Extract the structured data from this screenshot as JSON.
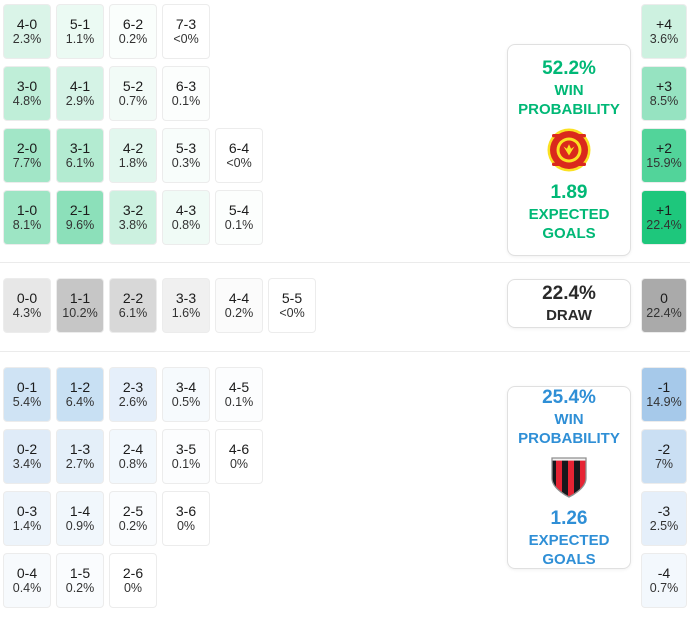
{
  "colors": {
    "home_accent": "#00b876",
    "draw_accent": "#2a2a2a",
    "away_accent": "#2f8fd6",
    "home_margin_strong": "#1ec77c",
    "away_margin_strong": "#a6c9ea",
    "draw_margin_strong": "#aaaaaa"
  },
  "icons": {
    "home_crest": "manchester-united-crest",
    "away_crest": "afc-bournemouth-crest"
  },
  "home_panel": {
    "win_prob": "52.2%",
    "win_line1": "WIN",
    "win_line2": "PROBABILITY",
    "xg": "1.89",
    "xg_line1": "EXPECTED",
    "xg_line2": "GOALS"
  },
  "draw_panel": {
    "prob": "22.4%",
    "label": "DRAW"
  },
  "away_panel": {
    "win_prob": "25.4%",
    "win_line1": "WIN",
    "win_line2": "PROBABILITY",
    "xg": "1.26",
    "xg_line1": "EXPECTED",
    "xg_line2": "GOALS"
  },
  "home_grid": [
    [
      {
        "score": "4-0",
        "pct": "2.3%",
        "bg": "#daf4e8"
      },
      {
        "score": "5-1",
        "pct": "1.1%",
        "bg": "#ebfaf3"
      },
      {
        "score": "6-2",
        "pct": "0.2%",
        "bg": "#fafefc"
      },
      {
        "score": "7-3",
        "pct": "<0%",
        "bg": "#ffffff"
      }
    ],
    [
      {
        "score": "3-0",
        "pct": "4.8%",
        "bg": "#bfeed8"
      },
      {
        "score": "4-1",
        "pct": "2.9%",
        "bg": "#d5f3e6"
      },
      {
        "score": "5-2",
        "pct": "0.7%",
        "bg": "#f2fbf7"
      },
      {
        "score": "6-3",
        "pct": "0.1%",
        "bg": "#fcfefd"
      }
    ],
    [
      {
        "score": "2-0",
        "pct": "7.7%",
        "bg": "#a2e6c7"
      },
      {
        "score": "3-1",
        "pct": "6.1%",
        "bg": "#b3ebd1"
      },
      {
        "score": "4-2",
        "pct": "1.8%",
        "bg": "#e2f7ee"
      },
      {
        "score": "5-3",
        "pct": "0.3%",
        "bg": "#f8fdfb"
      },
      {
        "score": "6-4",
        "pct": "<0%",
        "bg": "#ffffff"
      }
    ],
    [
      {
        "score": "1-0",
        "pct": "8.1%",
        "bg": "#9de5c4"
      },
      {
        "score": "2-1",
        "pct": "9.6%",
        "bg": "#8ce0ba"
      },
      {
        "score": "3-2",
        "pct": "3.8%",
        "bg": "#ccf1e0"
      },
      {
        "score": "4-3",
        "pct": "0.8%",
        "bg": "#f0fbf6"
      },
      {
        "score": "5-4",
        "pct": "0.1%",
        "bg": "#fcfefd"
      }
    ]
  ],
  "home_margins": [
    {
      "label": "+4",
      "pct": "3.6%",
      "bg": "#cdf1e0"
    },
    {
      "label": "+3",
      "pct": "8.5%",
      "bg": "#96e3c1"
    },
    {
      "label": "+2",
      "pct": "15.9%",
      "bg": "#52d49a"
    },
    {
      "label": "+1",
      "pct": "22.4%",
      "bg": "#1ec77c"
    }
  ],
  "draw_row": [
    {
      "score": "0-0",
      "pct": "4.3%",
      "bg": "#e7e7e7"
    },
    {
      "score": "1-1",
      "pct": "10.2%",
      "bg": "#c6c6c6"
    },
    {
      "score": "2-2",
      "pct": "6.1%",
      "bg": "#d8d8d8"
    },
    {
      "score": "3-3",
      "pct": "1.6%",
      "bg": "#f0f0f0"
    },
    {
      "score": "4-4",
      "pct": "0.2%",
      "bg": "#fbfbfb"
    },
    {
      "score": "5-5",
      "pct": "<0%",
      "bg": "#ffffff"
    }
  ],
  "draw_margin": {
    "label": "0",
    "pct": "22.4%",
    "bg": "#aaaaaa"
  },
  "away_grid": [
    [
      {
        "score": "0-1",
        "pct": "5.4%",
        "bg": "#cfe3f4"
      },
      {
        "score": "1-2",
        "pct": "6.4%",
        "bg": "#c8e0f3"
      },
      {
        "score": "2-3",
        "pct": "2.6%",
        "bg": "#e5effa"
      },
      {
        "score": "3-4",
        "pct": "0.5%",
        "bg": "#f6fafd"
      },
      {
        "score": "4-5",
        "pct": "0.1%",
        "bg": "#fcfdfe"
      }
    ],
    [
      {
        "score": "0-2",
        "pct": "3.4%",
        "bg": "#dfebf8"
      },
      {
        "score": "1-3",
        "pct": "2.7%",
        "bg": "#e4eff9"
      },
      {
        "score": "2-4",
        "pct": "0.8%",
        "bg": "#f2f8fd"
      },
      {
        "score": "3-5",
        "pct": "0.1%",
        "bg": "#fcfdfe"
      },
      {
        "score": "4-6",
        "pct": "0%",
        "bg": "#ffffff"
      }
    ],
    [
      {
        "score": "0-3",
        "pct": "1.4%",
        "bg": "#edf4fb"
      },
      {
        "score": "1-4",
        "pct": "0.9%",
        "bg": "#f1f7fc"
      },
      {
        "score": "2-5",
        "pct": "0.2%",
        "bg": "#fafcfe"
      },
      {
        "score": "3-6",
        "pct": "0%",
        "bg": "#ffffff"
      }
    ],
    [
      {
        "score": "0-4",
        "pct": "0.4%",
        "bg": "#f7fafd"
      },
      {
        "score": "1-5",
        "pct": "0.2%",
        "bg": "#fafcfe"
      },
      {
        "score": "2-6",
        "pct": "0%",
        "bg": "#ffffff"
      }
    ]
  ],
  "away_margins": [
    {
      "label": "-1",
      "pct": "14.9%",
      "bg": "#a6c9ea"
    },
    {
      "label": "-2",
      "pct": "7%",
      "bg": "#cadff3"
    },
    {
      "label": "-3",
      "pct": "2.5%",
      "bg": "#e5effa"
    },
    {
      "label": "-4",
      "pct": "0.7%",
      "bg": "#f3f8fd"
    }
  ],
  "chart_data": {
    "type": "heatmap",
    "title": "Correct score probability matrix",
    "home_win": {
      "probability_pct": 52.2,
      "expected_goals": 1.89,
      "scores": [
        {
          "score": "4-0",
          "pct": 2.3
        },
        {
          "score": "5-1",
          "pct": 1.1
        },
        {
          "score": "6-2",
          "pct": 0.2
        },
        {
          "score": "7-3",
          "pct": 0
        },
        {
          "score": "3-0",
          "pct": 4.8
        },
        {
          "score": "4-1",
          "pct": 2.9
        },
        {
          "score": "5-2",
          "pct": 0.7
        },
        {
          "score": "6-3",
          "pct": 0.1
        },
        {
          "score": "2-0",
          "pct": 7.7
        },
        {
          "score": "3-1",
          "pct": 6.1
        },
        {
          "score": "4-2",
          "pct": 1.8
        },
        {
          "score": "5-3",
          "pct": 0.3
        },
        {
          "score": "6-4",
          "pct": 0
        },
        {
          "score": "1-0",
          "pct": 8.1
        },
        {
          "score": "2-1",
          "pct": 9.6
        },
        {
          "score": "3-2",
          "pct": 3.8
        },
        {
          "score": "4-3",
          "pct": 0.8
        },
        {
          "score": "5-4",
          "pct": 0.1
        }
      ],
      "goal_margins": [
        {
          "margin": "+4",
          "pct": 3.6
        },
        {
          "margin": "+3",
          "pct": 8.5
        },
        {
          "margin": "+2",
          "pct": 15.9
        },
        {
          "margin": "+1",
          "pct": 22.4
        }
      ]
    },
    "draw": {
      "probability_pct": 22.4,
      "scores": [
        {
          "score": "0-0",
          "pct": 4.3
        },
        {
          "score": "1-1",
          "pct": 10.2
        },
        {
          "score": "2-2",
          "pct": 6.1
        },
        {
          "score": "3-3",
          "pct": 1.6
        },
        {
          "score": "4-4",
          "pct": 0.2
        },
        {
          "score": "5-5",
          "pct": 0
        }
      ],
      "goal_margins": [
        {
          "margin": "0",
          "pct": 22.4
        }
      ]
    },
    "away_win": {
      "probability_pct": 25.4,
      "expected_goals": 1.26,
      "scores": [
        {
          "score": "0-1",
          "pct": 5.4
        },
        {
          "score": "1-2",
          "pct": 6.4
        },
        {
          "score": "2-3",
          "pct": 2.6
        },
        {
          "score": "3-4",
          "pct": 0.5
        },
        {
          "score": "4-5",
          "pct": 0.1
        },
        {
          "score": "0-2",
          "pct": 3.4
        },
        {
          "score": "1-3",
          "pct": 2.7
        },
        {
          "score": "2-4",
          "pct": 0.8
        },
        {
          "score": "3-5",
          "pct": 0.1
        },
        {
          "score": "4-6",
          "pct": 0
        },
        {
          "score": "0-3",
          "pct": 1.4
        },
        {
          "score": "1-4",
          "pct": 0.9
        },
        {
          "score": "2-5",
          "pct": 0.2
        },
        {
          "score": "3-6",
          "pct": 0
        },
        {
          "score": "0-4",
          "pct": 0.4
        },
        {
          "score": "1-5",
          "pct": 0.2
        },
        {
          "score": "2-6",
          "pct": 0
        }
      ],
      "goal_margins": [
        {
          "margin": "-1",
          "pct": 14.9
        },
        {
          "margin": "-2",
          "pct": 7
        },
        {
          "margin": "-3",
          "pct": 2.5
        },
        {
          "margin": "-4",
          "pct": 0.7
        }
      ]
    }
  }
}
